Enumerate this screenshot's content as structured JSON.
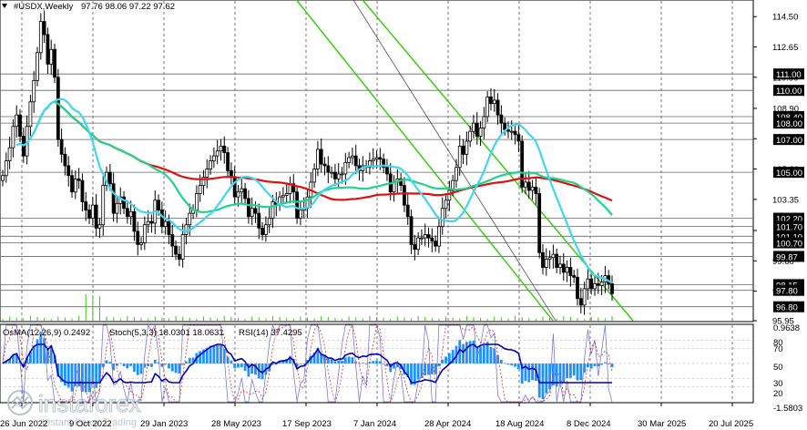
{
  "colors": {
    "background": "#ffffff",
    "candle": "#000000",
    "ma_fast": "#3fd6f2",
    "ma_mid": "#1fd48a",
    "ma_slow": "#e01010",
    "channel": "#2ccd00",
    "level_line": "#666666",
    "level_label_bg": "#000000",
    "osma": "#1e90ff",
    "stoch_main": "#7a7ad8",
    "stoch_signal": "#e03030",
    "rsi": "#0000c0"
  },
  "header": {
    "symbol": "#USDX,Weekly",
    "ohlc": "97.76 98.06 97.22 97.62"
  },
  "indicator_header": {
    "osma": "OsMA(12,26,9) 0.2492",
    "stoch": "Stoch(5,3,3) 18.0301 18.0631",
    "rsi": "RSI(14) 37.4295"
  },
  "watermark": {
    "brand": "instaforex",
    "tagline": "Instant Forex Trading"
  },
  "chart_data": {
    "type": "candlestick",
    "timeframe": "Weekly",
    "symbol": "#USDX",
    "ylim": [
      95.95,
      115.4
    ],
    "price_ticks": [
      "114.50",
      "112.65",
      "110.80",
      "108.90",
      "107.05",
      "105.20",
      "103.35",
      "101.45",
      "99.60",
      "97.75",
      "95.95"
    ],
    "x_ticks": [
      "26 Jun 2022",
      "9 Oct 2022",
      "29 Jan 2023",
      "28 May 2023",
      "17 Sep 2023",
      "7 Jan 2024",
      "28 Apr 2024",
      "18 Aug 2024",
      "8 Dec 2024",
      "30 Mar 2025",
      "20 Jul 2025"
    ],
    "levels": [
      {
        "label": "111.00",
        "value": 111.0
      },
      {
        "label": "110.00",
        "value": 110.0
      },
      {
        "label": "108.40",
        "value": 108.4
      },
      {
        "label": "108.00",
        "value": 108.0
      },
      {
        "label": "107.00",
        "value": 107.0
      },
      {
        "label": "105.00",
        "value": 105.0
      },
      {
        "label": "102.20",
        "value": 102.2
      },
      {
        "label": "101.70",
        "value": 101.7
      },
      {
        "label": "101.10",
        "value": 101.1
      },
      {
        "label": "100.70",
        "value": 100.7
      },
      {
        "label": "99.87",
        "value": 99.87
      },
      {
        "label": "98.15",
        "value": 98.15
      },
      {
        "label": "97.80",
        "value": 97.8
      },
      {
        "label": "96.80",
        "value": 96.8
      }
    ],
    "close_series": [
      104.8,
      105.7,
      106.5,
      107.8,
      108.5,
      107.2,
      106.0,
      107.8,
      109.3,
      110.6,
      112.3,
      114.2,
      113.4,
      111.6,
      112.5,
      110.8,
      107.0,
      106.1,
      105.4,
      104.8,
      103.8,
      104.6,
      104.5,
      103.2,
      102.7,
      102.2,
      103.0,
      101.6,
      101.8,
      104.2,
      105.0,
      104.3,
      102.5,
      103.1,
      103.5,
      102.8,
      102.3,
      102.6,
      101.4,
      100.6,
      100.7,
      101.8,
      102.0,
      101.9,
      103.3,
      102.7,
      101.7,
      102.0,
      101.2,
      100.5,
      100.0,
      99.7,
      101.2,
      101.8,
      102.5,
      102.7,
      103.7,
      104.2,
      104.7,
      105.2,
      105.7,
      106.0,
      106.3,
      106.6,
      106.2,
      105.1,
      104.7,
      103.5,
      103.8,
      104.0,
      103.4,
      102.3,
      102.8,
      102.5,
      101.6,
      101.2,
      101.8,
      102.2,
      103.2,
      103.0,
      103.5,
      103.6,
      103.7,
      104.3,
      103.8,
      102.2,
      102.7,
      102.8,
      103.5,
      104.4,
      105.2,
      106.4,
      105.5,
      105.4,
      105.0,
      105.0,
      104.6,
      104.9,
      104.9,
      105.6,
      105.9,
      106.0,
      105.4,
      105.1,
      105.4,
      105.3,
      105.7,
      105.8,
      105.9,
      105.8,
      105.3,
      104.9,
      103.8,
      104.4,
      104.6,
      104.2,
      103.0,
      102.3,
      100.6,
      100.3,
      101.0,
      101.0,
      101.2,
      101.0,
      100.8,
      100.5,
      101.7,
      102.8,
      103.3,
      103.9,
      104.5,
      105.3,
      106.6,
      106.1,
      106.9,
      107.5,
      108.0,
      107.2,
      107.7,
      108.4,
      109.6,
      109.2,
      109.4,
      108.5,
      108.0,
      107.6,
      107.5,
      107.5,
      107.3,
      106.9,
      104.1,
      104.4,
      103.9,
      104.1,
      103.7,
      100.1,
      99.2,
      99.7,
      99.8,
      100.0,
      99.2,
      99.4,
      98.9,
      99.2,
      98.7,
      98.6,
      97.3,
      96.9,
      97.9,
      98.5,
      97.9,
      98.2,
      98.1,
      98.3,
      98.7,
      98.2,
      97.6
    ],
    "series": [
      {
        "name": "",
        "color": "#3fd6f2"
      },
      {
        "name": "",
        "color": "#1fd48a"
      },
      {
        "name": "",
        "color": "#e01010"
      }
    ],
    "subpanel": {
      "ticks": [
        "0.9638",
        "80",
        "70",
        "50",
        "30",
        "20",
        "-1.5803"
      ],
      "osma_last": 0.2492,
      "stoch_main_last": 18.0301,
      "stoch_signal_last": 18.0631,
      "rsi_last": 37.4295
    }
  }
}
